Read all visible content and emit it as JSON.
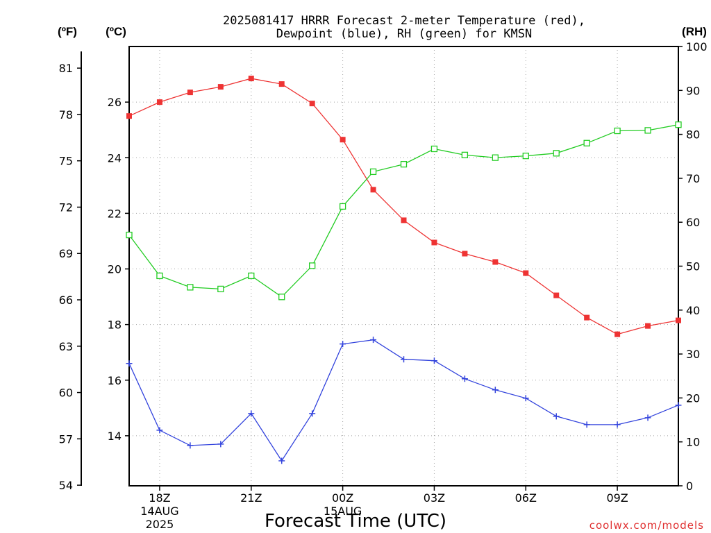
{
  "title_line1": "2025081417 HRRR Forecast 2-meter Temperature (red),",
  "title_line2": "Dewpoint (blue), RH (green) for KMSN",
  "units": {
    "fahrenheit": "(ºF)",
    "celsius": "(ºC)",
    "rh": "(RH)"
  },
  "x_axis_label": "Forecast Time (UTC)",
  "credit": "coolwx.com/models",
  "chart_data": {
    "type": "line",
    "title": "2025081417 HRRR Forecast 2-meter Temperature (red), Dewpoint (blue), RH (green) for KMSN",
    "xlabel": "Forecast Time (UTC)",
    "x_hours": [
      "17Z",
      "18Z",
      "19Z",
      "20Z",
      "21Z",
      "22Z",
      "23Z",
      "00Z",
      "01Z",
      "02Z",
      "03Z",
      "04Z",
      "05Z",
      "06Z",
      "07Z",
      "08Z",
      "09Z",
      "10Z",
      "11Z"
    ],
    "x_ticks": [
      {
        "index": 1,
        "label": "18Z",
        "sub1": "14AUG",
        "sub2": "2025"
      },
      {
        "index": 4,
        "label": "21Z",
        "sub1": "",
        "sub2": ""
      },
      {
        "index": 7,
        "label": "00Z",
        "sub1": "15AUG",
        "sub2": ""
      },
      {
        "index": 10,
        "label": "03Z",
        "sub1": "",
        "sub2": ""
      },
      {
        "index": 13,
        "label": "06Z",
        "sub1": "",
        "sub2": ""
      },
      {
        "index": 16,
        "label": "09Z",
        "sub1": "",
        "sub2": ""
      }
    ],
    "y_celsius": {
      "ylim": [
        12.2,
        28.0
      ],
      "ticks": [
        14,
        16,
        18,
        20,
        22,
        24,
        26
      ]
    },
    "y_fahrenheit": {
      "ticks": [
        54,
        57,
        60,
        63,
        66,
        69,
        72,
        75,
        78,
        81
      ]
    },
    "y_rh": {
      "ylim": [
        0,
        100
      ],
      "ticks": [
        0,
        10,
        20,
        30,
        40,
        50,
        60,
        70,
        80,
        90,
        100
      ]
    },
    "grid": true,
    "series": [
      {
        "name": "Temperature",
        "axis": "celsius",
        "color": "#ee3333",
        "marker": "filled-square",
        "values": [
          25.5,
          26.0,
          26.35,
          26.55,
          26.85,
          26.65,
          25.95,
          24.65,
          22.85,
          21.75,
          20.95,
          20.55,
          20.25,
          19.85,
          19.05,
          18.25,
          17.65,
          17.95,
          18.15
        ]
      },
      {
        "name": "Dewpoint",
        "axis": "celsius",
        "color": "#3344dd",
        "marker": "plus",
        "values": [
          16.6,
          14.2,
          13.65,
          13.7,
          14.8,
          13.1,
          14.8,
          17.3,
          17.45,
          16.75,
          16.7,
          16.05,
          15.65,
          15.35,
          14.7,
          14.4,
          14.4,
          14.65,
          15.1
        ]
      },
      {
        "name": "RH",
        "axis": "rh",
        "color": "#22cc22",
        "marker": "open-square",
        "values": [
          57.1,
          47.8,
          45.2,
          44.8,
          47.8,
          43.0,
          50.1,
          63.6,
          71.5,
          73.2,
          76.7,
          75.3,
          74.7,
          75.1,
          75.7,
          78.0,
          80.8,
          80.9,
          82.2
        ]
      }
    ]
  }
}
